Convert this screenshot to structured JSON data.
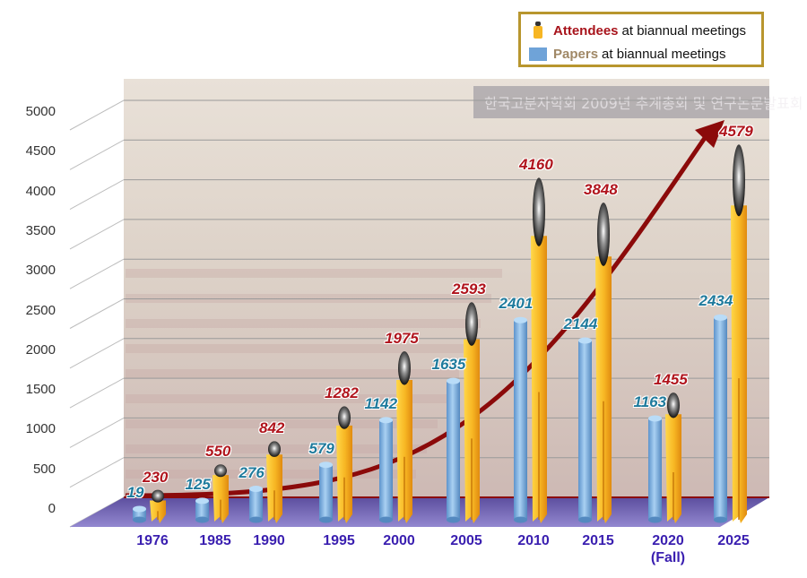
{
  "legend": {
    "attendees_key": "Attendees",
    "attendees_rest": "at biannual meetings",
    "papers_key": "Papers",
    "papers_rest": "at biannual meetings",
    "border_color": "#b8962e"
  },
  "colors": {
    "attendees_label": "#b0141c",
    "papers_label": "#1e7a9c",
    "year_label": "#3a1fb0",
    "floor": "#7a6cc0",
    "trend_arrow": "#8b0a0a",
    "figure_body": "#f7b623",
    "paper_cylinder": "#7fb0e0"
  },
  "background_banner": "한국고분자학회 2009년 추계총회 및 연구논문발표회",
  "chart_data": {
    "type": "bar",
    "title": "",
    "xlabel": "",
    "ylabel": "",
    "ylim": [
      0,
      5000
    ],
    "yticks": [
      0,
      500,
      1000,
      1500,
      2000,
      2500,
      3000,
      3500,
      4000,
      4500,
      5000
    ],
    "grid": true,
    "legend_position": "top-right",
    "categories": [
      "1976",
      "1985",
      "1990",
      "1995",
      "2000",
      "2005",
      "2010",
      "2015",
      "2020 (Fall)",
      "2025"
    ],
    "category_lines": [
      [
        "1976"
      ],
      [
        "1985"
      ],
      [
        "1990"
      ],
      [
        "1995"
      ],
      [
        "2000"
      ],
      [
        "2005"
      ],
      [
        "2010"
      ],
      [
        "2015"
      ],
      [
        "2020",
        "(Fall)"
      ],
      [
        "2025"
      ]
    ],
    "series": [
      {
        "name": "Papers at biannual meetings",
        "style": "cylinder",
        "values": [
          19,
          125,
          276,
          579,
          1142,
          1635,
          2401,
          2144,
          1163,
          2434
        ]
      },
      {
        "name": "Attendees at biannual meetings",
        "style": "person-figure",
        "values": [
          230,
          550,
          842,
          1282,
          1975,
          2593,
          4160,
          3848,
          1455,
          4579
        ]
      }
    ],
    "annotations": [
      "Exponential-style upward trend arrow drawn across attendees growth"
    ]
  }
}
